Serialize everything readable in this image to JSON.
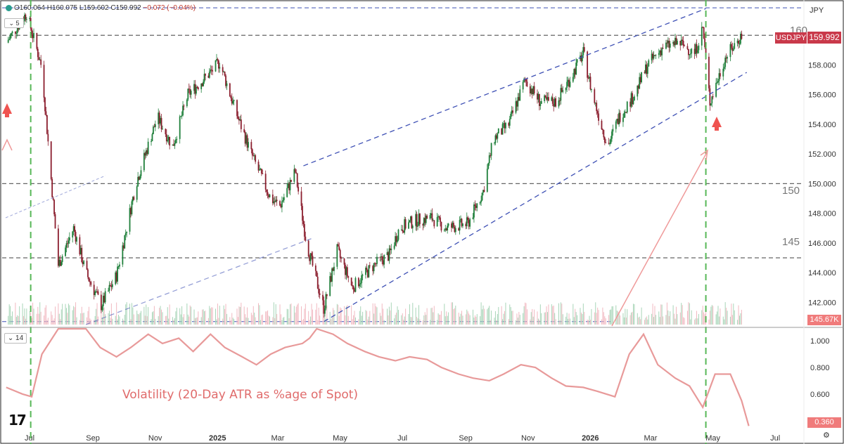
{
  "ohlc_bar": {
    "open": "O160.064",
    "high": "H160.075",
    "low": "L159.602",
    "close": "C159.992",
    "change": "−0.072 (−0.04%)"
  },
  "legend": {
    "main_value": "5",
    "sub_value": "14"
  },
  "annotations": {
    "vol_title": "Volatility (20-Day ATR as %age of Spot)",
    "level_160": "160",
    "level_150": "150",
    "level_145": "145"
  },
  "axis": {
    "currency": "JPY",
    "price_ticks": [
      "158.000",
      "156.000",
      "154.000",
      "152.000",
      "150.000",
      "148.000",
      "146.000",
      "144.000",
      "142.000"
    ],
    "vol_ticks": [
      "1.000",
      "0.800",
      "0.600",
      "0.400"
    ],
    "time_ticks": [
      "Jul",
      "Sep",
      "Nov",
      "2025",
      "Mar",
      "May",
      "Jul",
      "Sep",
      "Nov",
      "2026",
      "Mar",
      "May",
      "Jul"
    ]
  },
  "badges": {
    "symbol": "USDJPY",
    "last_price": "159.992",
    "volume": "145.67K",
    "vol_last": "0.360"
  },
  "colors": {
    "up": "#26a69a",
    "down": "#c2465f",
    "bull_candle": "#1e7f3a",
    "bear_candle": "#8b1e2e",
    "trend": "#3f51b5",
    "vertical": "#57b757",
    "atr": "#e89a9a",
    "badge_red": "#c9394a",
    "badge_pink": "#f07b7b"
  },
  "chart_data": {
    "type": "line",
    "symbol": "USDJPY",
    "price_axis": {
      "ylim": [
        140.5,
        162.0
      ],
      "ticks": [
        142,
        144,
        146,
        148,
        150,
        152,
        154,
        156,
        158
      ]
    },
    "price_series": {
      "name": "USDJPY",
      "x": [
        "2024-06-15",
        "2024-07-05",
        "2024-07-20",
        "2024-08-05",
        "2024-08-20",
        "2024-09-01",
        "2024-09-16",
        "2024-10-01",
        "2024-10-20",
        "2024-11-10",
        "2024-11-25",
        "2024-12-10",
        "2025-01-01",
        "2025-01-10",
        "2025-01-25",
        "2025-02-10",
        "2025-03-01",
        "2025-03-10",
        "2025-03-25",
        "2025-04-05",
        "2025-04-22",
        "2025-05-05",
        "2025-05-20",
        "2025-06-10",
        "2025-06-25",
        "2025-07-05",
        "2025-07-20",
        "2025-08-05",
        "2025-08-20",
        "2025-09-10",
        "2025-09-25",
        "2025-10-05",
        "2025-10-20",
        "2025-11-05",
        "2025-11-20",
        "2025-12-05",
        "2025-12-20",
        "2026-01-01",
        "2026-01-10",
        "2026-01-25",
        "2026-02-05",
        "2026-02-20",
        "2026-03-05",
        "2026-03-20",
        "2026-04-05",
        "2026-04-20",
        "2026-04-28",
        "2026-05-05",
        "2026-05-20",
        "2026-06-05"
      ],
      "y": [
        159.5,
        161.5,
        157.8,
        144.5,
        147.0,
        144.0,
        141.8,
        143.8,
        150.0,
        154.5,
        152.5,
        156.0,
        157.5,
        158.2,
        155.0,
        152.0,
        149.0,
        148.5,
        150.8,
        146.0,
        141.6,
        145.5,
        143.0,
        144.5,
        145.2,
        147.0,
        147.5,
        147.7,
        147.0,
        147.3,
        149.5,
        153.0,
        154.0,
        157.0,
        155.5,
        155.5,
        157.2,
        158.8,
        156.0,
        152.5,
        154.5,
        156.0,
        158.0,
        159.2,
        159.5,
        158.8,
        160.5,
        155.5,
        158.5,
        160.0
      ]
    },
    "trendlines": [
      {
        "from": {
          "x": "2024-09-01",
          "y": 140.5
        },
        "to": {
          "x": "2025-04-10",
          "y": 146.3
        }
      },
      {
        "from": {
          "x": "2025-04-22",
          "y": 140.7
        },
        "to": {
          "x": "2026-06-10",
          "y": 157.5
        }
      },
      {
        "from": {
          "x": "2025-04-02",
          "y": 151.2
        },
        "to": {
          "x": "2026-05-01",
          "y": 161.8
        }
      }
    ],
    "horizontal_levels": [
      161.85,
      160.0,
      150.0,
      145.0,
      140.7
    ],
    "vertical_markers": [
      "2024-07-09",
      "2026-05-01"
    ],
    "volume_last": "145.67K",
    "atr_axis": {
      "ylim": [
        0.33,
        1.08
      ],
      "ticks": [
        0.4,
        0.6,
        0.8,
        1.0
      ]
    },
    "atr_series": {
      "x": [
        "2024-06-15",
        "2024-07-01",
        "2024-07-10",
        "2024-07-20",
        "2024-08-05",
        "2024-09-01",
        "2024-09-15",
        "2024-10-01",
        "2024-10-15",
        "2024-11-01",
        "2024-11-15",
        "2024-12-01",
        "2024-12-15",
        "2025-01-01",
        "2025-01-15",
        "2025-02-01",
        "2025-02-15",
        "2025-03-01",
        "2025-03-15",
        "2025-04-01",
        "2025-04-08",
        "2025-04-15",
        "2025-05-01",
        "2025-05-15",
        "2025-06-01",
        "2025-06-15",
        "2025-07-01",
        "2025-07-15",
        "2025-08-01",
        "2025-08-15",
        "2025-09-01",
        "2025-09-15",
        "2025-10-01",
        "2025-10-15",
        "2025-11-01",
        "2025-11-15",
        "2025-12-01",
        "2025-12-15",
        "2026-01-01",
        "2026-01-15",
        "2026-02-01",
        "2026-02-15",
        "2026-03-01",
        "2026-03-15",
        "2026-04-01",
        "2026-04-15",
        "2026-04-28",
        "2026-05-10",
        "2026-05-25",
        "2026-06-05",
        "2026-06-12"
      ],
      "y": [
        0.65,
        0.6,
        0.58,
        0.9,
        1.6,
        1.3,
        0.95,
        0.88,
        0.95,
        1.05,
        0.98,
        1.02,
        0.92,
        1.05,
        0.95,
        0.88,
        0.82,
        0.9,
        0.95,
        0.98,
        1.02,
        1.4,
        1.05,
        0.98,
        0.92,
        0.88,
        0.85,
        0.88,
        0.86,
        0.8,
        0.75,
        0.72,
        0.7,
        0.75,
        0.82,
        0.8,
        0.72,
        0.66,
        0.65,
        0.62,
        0.58,
        0.9,
        1.05,
        0.82,
        0.72,
        0.66,
        0.5,
        0.75,
        0.75,
        0.55,
        0.36
      ]
    },
    "xlim": [
      "2024-06-11",
      "2026-08-05"
    ]
  }
}
